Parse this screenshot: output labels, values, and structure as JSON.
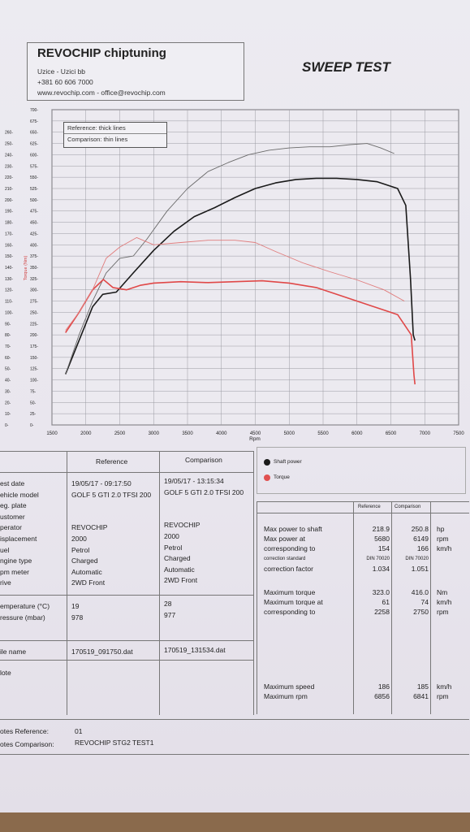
{
  "header": {
    "company": "REVOCHIP chiptuning",
    "address": "Uzice - Uzici bb",
    "phone": "+381 60 606 7000",
    "web": "www.revochip.com - office@revochip.com",
    "test_title": "SWEEP TEST"
  },
  "chart_legend": {
    "reference": "Reference: thick lines",
    "comparison": "Comparison: thin lines"
  },
  "chart_key": {
    "power": "Shaft power",
    "torque": "Torque",
    "power_color": "#1a1a1a",
    "torque_color": "#e05050"
  },
  "chart_data": {
    "type": "line",
    "xlabel": "Rpm",
    "ylabel_right": "Torque (Nm)",
    "xlim": [
      1500,
      7500
    ],
    "x_ticks": [
      "1500",
      "2000",
      "2500",
      "3000",
      "3500",
      "4000",
      "4500",
      "5000",
      "5500",
      "6000",
      "6500",
      "7000",
      "7500"
    ],
    "y_power_ticks": [
      "0-",
      "10-",
      "20-",
      "30-",
      "40-",
      "50-",
      "60-",
      "70-",
      "80-",
      "90-",
      "100-",
      "110-",
      "120-",
      "130-",
      "140-",
      "150-",
      "160-",
      "170-",
      "180-",
      "190-",
      "200-",
      "210-",
      "220-",
      "230-",
      "240-",
      "250-",
      "260-"
    ],
    "y_torque_ticks": [
      "0-",
      "25-",
      "50-",
      "75-",
      "100-",
      "125-",
      "150-",
      "175-",
      "200-",
      "225-",
      "250-",
      "275-",
      "300-",
      "325-",
      "350-",
      "375-",
      "400-",
      "425-",
      "450-",
      "475-",
      "500-",
      "525-",
      "550-",
      "575-",
      "600-",
      "625-",
      "650-",
      "675-",
      "700-"
    ],
    "grid": true,
    "series": [
      {
        "name": "Shaft power",
        "set": "Reference",
        "axis": "power",
        "x": [
          1700,
          1900,
          2100,
          2250,
          2450,
          2700,
          3000,
          3300,
          3600,
          3900,
          4200,
          4500,
          4800,
          5100,
          5400,
          5700,
          6000,
          6300,
          6600,
          6720,
          6790,
          6830,
          6856
        ],
        "y": [
          45,
          75,
          105,
          116,
          118,
          135,
          155,
          172,
          185,
          193,
          202,
          210,
          215,
          218,
          219,
          219,
          218,
          216,
          210,
          195,
          130,
          80,
          75
        ]
      },
      {
        "name": "Shaft power",
        "set": "Comparison",
        "axis": "power",
        "x": [
          1700,
          1900,
          2100,
          2300,
          2500,
          2700,
          2900,
          3200,
          3500,
          3800,
          4100,
          4400,
          4700,
          5000,
          5300,
          5600,
          5900,
          6149,
          6350,
          6550
        ],
        "y": [
          45,
          80,
          110,
          135,
          148,
          150,
          165,
          190,
          210,
          225,
          233,
          240,
          244,
          246,
          247,
          247,
          249,
          250,
          246,
          241
        ]
      },
      {
        "name": "Torque",
        "set": "Reference",
        "axis": "torque",
        "x": [
          1700,
          1900,
          2100,
          2258,
          2400,
          2600,
          2800,
          3000,
          3400,
          3800,
          4200,
          4600,
          5000,
          5400,
          5800,
          6200,
          6600,
          6800,
          6841,
          6856
        ],
        "y": [
          205,
          250,
          300,
          323,
          305,
          300,
          310,
          315,
          318,
          316,
          318,
          320,
          315,
          305,
          285,
          265,
          245,
          200,
          110,
          90
        ]
      },
      {
        "name": "Torque",
        "set": "Comparison",
        "axis": "torque",
        "x": [
          1700,
          1900,
          2100,
          2300,
          2500,
          2750,
          3000,
          3400,
          3800,
          4200,
          4500,
          4800,
          5200,
          5600,
          6000,
          6400,
          6700
        ],
        "y": [
          210,
          250,
          300,
          370,
          395,
          416,
          400,
          405,
          410,
          410,
          405,
          385,
          360,
          340,
          322,
          300,
          275
        ]
      }
    ]
  },
  "left_table": {
    "col_reference": "Reference",
    "col_comparison": "Comparison",
    "rows": [
      {
        "label": "est date",
        "ref": "19/05/17 - 09:17:50",
        "cmp": "19/05/17 - 13:15:34"
      },
      {
        "label": "ehicle model",
        "ref": "GOLF 5 GTI 2.0 TFSI 200",
        "cmp": "GOLF 5 GTI 2.0 TFSI 200"
      },
      {
        "label": "eg. plate",
        "ref": "",
        "cmp": ""
      },
      {
        "label": "ustomer",
        "ref": "",
        "cmp": ""
      },
      {
        "label": "perator",
        "ref": "REVOCHIP",
        "cmp": "REVOCHIP"
      },
      {
        "label": "isplacement",
        "ref": "2000",
        "cmp": "2000"
      },
      {
        "label": "uel",
        "ref": "Petrol",
        "cmp": "Petrol"
      },
      {
        "label": "ngine type",
        "ref": "Charged",
        "cmp": "Charged"
      },
      {
        "label": "pm meter",
        "ref": "Automatic",
        "cmp": "Automatic"
      },
      {
        "label": "rive",
        "ref": "2WD Front",
        "cmp": "2WD Front"
      }
    ],
    "env_rows": [
      {
        "label": "emperature (°C)",
        "ref": "19",
        "cmp": "28"
      },
      {
        "label": "ressure (mbar)",
        "ref": "978",
        "cmp": "977"
      }
    ],
    "file_label": "ile name",
    "file_ref": "170519_091750.dat",
    "file_cmp": "170519_131534.dat",
    "note_label": "lote"
  },
  "right_table": {
    "col_reference": "Reference",
    "col_comparison": "Comparison",
    "rows": [
      {
        "label": "Max power to shaft",
        "ref": "218.9",
        "cmp": "250.8",
        "unit": "hp"
      },
      {
        "label": "Max power at",
        "ref": "5680",
        "cmp": "6149",
        "unit": "rpm"
      },
      {
        "label": "corresponding to",
        "ref": "154",
        "cmp": "166",
        "unit": "km/h"
      },
      {
        "label": "correction standard",
        "ref": "DIN 70020",
        "cmp": "DIN 70020",
        "unit": "",
        "small": true
      },
      {
        "label": "correction factor",
        "ref": "1.034",
        "cmp": "1.051",
        "unit": ""
      }
    ],
    "torque_rows": [
      {
        "label": "Maximum torque",
        "ref": "323.0",
        "cmp": "416.0",
        "unit": "Nm"
      },
      {
        "label": "Maximum torque at",
        "ref": "61",
        "cmp": "74",
        "unit": "km/h"
      },
      {
        "label": "corresponding to",
        "ref": "2258",
        "cmp": "2750",
        "unit": "rpm"
      }
    ],
    "speed_rows": [
      {
        "label": "Maximum speed",
        "ref": "186",
        "cmp": "185",
        "unit": "km/h"
      },
      {
        "label": "Maximum rpm",
        "ref": "6856",
        "cmp": "6841",
        "unit": "rpm"
      }
    ]
  },
  "notes": {
    "ref_label": "otes Reference:",
    "ref_value": "01",
    "cmp_label": "otes Comparison:",
    "cmp_value": "REVOCHIP STG2 TEST1"
  }
}
